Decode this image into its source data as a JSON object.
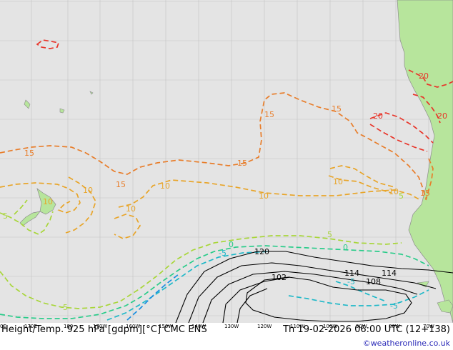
{
  "map": {
    "product": "Height/Temp. 925 hPa [gdpm][°C] CMC ENS",
    "valid_time": "Th 19-02-2026 06:00 UTC (12+138)",
    "credit": "©weatheronline.co.uk",
    "longitude_labels": [
      "0E",
      "170E",
      "180",
      "170W",
      "160W",
      "150W",
      "140W",
      "130W",
      "120W",
      "110W",
      "100W",
      "90W",
      "80W",
      "70W"
    ],
    "isotherm_labels": [
      "20",
      "20",
      "20",
      "15",
      "15",
      "15",
      "15",
      "15",
      "15",
      "10",
      "10",
      "10",
      "10",
      "10",
      "10",
      "10",
      "5",
      "5",
      "5",
      "5",
      "0",
      "0",
      "-5",
      "-5",
      "-5"
    ],
    "height_labels": [
      "120",
      "114",
      "114",
      "108",
      "102"
    ],
    "colors": {
      "ocean": "#e4e4e4",
      "land": "#b7e59c",
      "grid": "#c4c4c4",
      "iso_20": "#e8352a",
      "iso_15": "#e87d2a",
      "iso_10": "#e8a52a",
      "iso_5": "#a8d63a",
      "iso_0": "#2acc8a",
      "iso_minus5": "#1fb8c8",
      "iso_minus10": "#1a8fe0",
      "height": "#000000",
      "credit": "#2a2ab8"
    }
  }
}
